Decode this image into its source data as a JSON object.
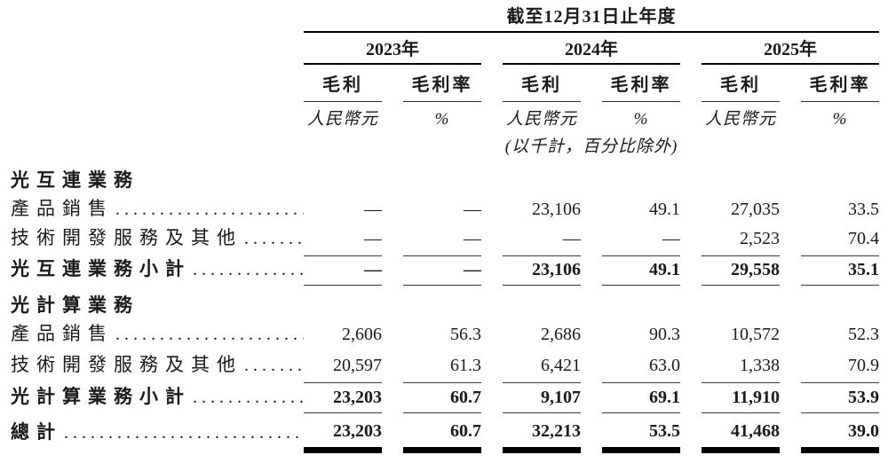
{
  "table": {
    "title": "截至12月31日止年度",
    "note": "(以千計，百分比除外)",
    "years": [
      "2023年",
      "2024年",
      "2025年"
    ],
    "columns": {
      "gross_profit": "毛利",
      "gross_margin": "毛利率",
      "unit_rmb": "人民幣元",
      "unit_pct": "%"
    },
    "rows": [
      {
        "type": "section",
        "label": "光互連業務"
      },
      {
        "type": "item",
        "label": "產品銷售",
        "values": [
          "—",
          "—",
          "23,106",
          "49.1",
          "27,035",
          "33.5"
        ]
      },
      {
        "type": "item",
        "label": "技術開發服務及其他",
        "values": [
          "—",
          "—",
          "—",
          "—",
          "2,523",
          "70.4"
        ]
      },
      {
        "type": "subtotal",
        "label": "光互連業務小計",
        "values": [
          "—",
          "—",
          "23,106",
          "49.1",
          "29,558",
          "35.1"
        ]
      },
      {
        "type": "section",
        "label": "光計算業務"
      },
      {
        "type": "item",
        "label": "產品銷售",
        "values": [
          "2,606",
          "56.3",
          "2,686",
          "90.3",
          "10,572",
          "52.3"
        ]
      },
      {
        "type": "item",
        "label": "技術開發服務及其他",
        "values": [
          "20,597",
          "61.3",
          "6,421",
          "63.0",
          "1,338",
          "70.9"
        ]
      },
      {
        "type": "subtotal",
        "label": "光計算業務小計",
        "values": [
          "23,203",
          "60.7",
          "9,107",
          "69.1",
          "11,910",
          "53.9"
        ]
      },
      {
        "type": "total",
        "label": "總計",
        "values": [
          "23,203",
          "60.7",
          "32,213",
          "53.5",
          "41,468",
          "39.0"
        ]
      }
    ]
  }
}
